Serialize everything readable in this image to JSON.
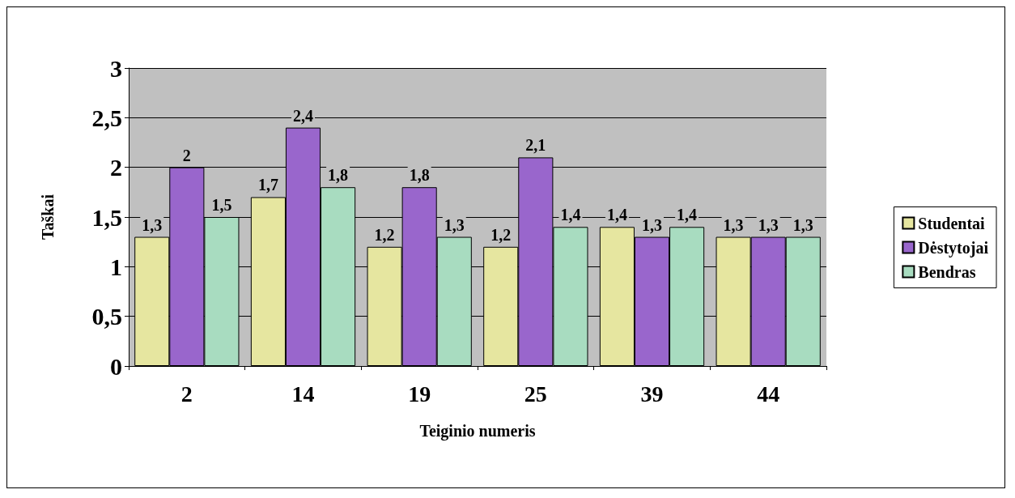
{
  "chart_data": {
    "type": "bar",
    "xlabel": "Teiginio numeris",
    "ylabel": "Taškai",
    "categories": [
      "2",
      "14",
      "19",
      "25",
      "39",
      "44"
    ],
    "series": [
      {
        "name": "Studentai",
        "color": "#e6e6a0",
        "values": [
          1.3,
          1.7,
          1.2,
          1.2,
          1.4,
          1.3
        ],
        "value_labels": [
          "1,3",
          "1,7",
          "1,2",
          "1,2",
          "1,4",
          "1,3"
        ]
      },
      {
        "name": "Dėstytojai",
        "color": "#9966cc",
        "values": [
          2,
          2.4,
          1.8,
          2.1,
          1.3,
          1.3
        ],
        "value_labels": [
          "2",
          "2,4",
          "1,8",
          "2,1",
          "1,3",
          "1,3"
        ]
      },
      {
        "name": "Bendras",
        "color": "#a8dcc0",
        "values": [
          1.5,
          1.8,
          1.3,
          1.4,
          1.4,
          1.3
        ],
        "value_labels": [
          "1,5",
          "1,8",
          "1,3",
          "1,4",
          "1,4",
          "1,3"
        ]
      }
    ],
    "ylim": [
      0,
      3
    ],
    "yticks": [
      0,
      {
        "value": 0.5,
        "label": "0,5"
      },
      1,
      {
        "value": 1.5,
        "label": "1,5"
      },
      2,
      {
        "value": 2.5,
        "label": "2,5"
      },
      3
    ],
    "grid": "y",
    "legend": "right"
  }
}
